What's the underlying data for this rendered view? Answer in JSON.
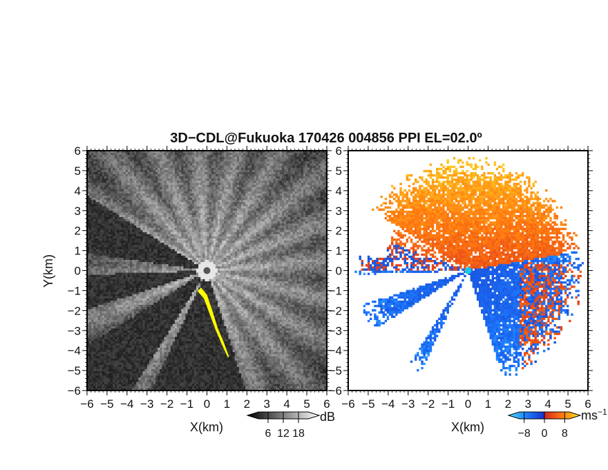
{
  "title": "3D−CDL@Fukuoka 170426 004856 PPI EL=02.0º",
  "colors": {
    "background": "#ffffff",
    "center_marker_left": "#555555",
    "center_marker_right": "#19c8e6",
    "clutter_highlight": "#ffff00"
  },
  "chart_data": [
    {
      "type": "heatmap",
      "panel": "left",
      "quantity": "SNR (dB)",
      "xlabel": "X(km)",
      "ylabel": "Y(km)",
      "xlim": [
        -6,
        6
      ],
      "ylim": [
        -6,
        6
      ],
      "xticks": [
        "−6",
        "−5",
        "−4",
        "−3",
        "−2",
        "−1",
        "0",
        "1",
        "2",
        "3",
        "4",
        "5",
        "6"
      ],
      "yticks": [
        "6",
        "5",
        "4",
        "3",
        "2",
        "1",
        "0",
        "−1",
        "−2",
        "−3",
        "−4",
        "−5",
        "−6"
      ],
      "colorbar": {
        "unit": "dB",
        "ticks": [
          "6",
          "12",
          "18"
        ],
        "tick_values": [
          6,
          12,
          18
        ],
        "range": [
          0,
          24
        ],
        "colormap": "grayscale"
      }
    },
    {
      "type": "heatmap",
      "panel": "right",
      "quantity": "Radial velocity (m/s)",
      "xlabel": "X(km)",
      "xlim": [
        -6,
        6
      ],
      "ylim": [
        -6,
        6
      ],
      "xticks": [
        "−6",
        "−5",
        "−4",
        "−3",
        "−2",
        "−1",
        "0",
        "1",
        "2",
        "3",
        "4",
        "5",
        "6"
      ],
      "yticks": [
        "6",
        "5",
        "4",
        "3",
        "2",
        "1",
        "0",
        "−1",
        "−2",
        "−3",
        "−4",
        "−5",
        "−6"
      ],
      "colorbar": {
        "unit": "ms",
        "unit_exp": "−1",
        "ticks": [
          "−8",
          "0",
          "8"
        ],
        "tick_values": [
          -8,
          0,
          8
        ],
        "range": [
          -12,
          12
        ],
        "colormap": "cyan-blue-red-yellow"
      }
    }
  ]
}
